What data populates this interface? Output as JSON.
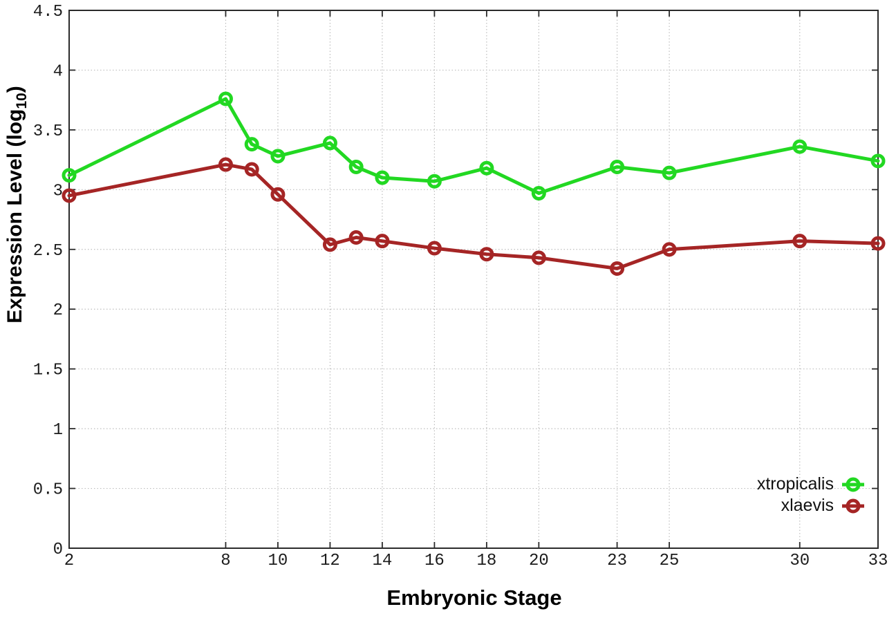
{
  "chart_data": {
    "type": "line",
    "xlabel": "Embryonic Stage",
    "ylabel_main": "Expression Level (log",
    "ylabel_sub": "10",
    "ylabel_close": ")",
    "x": [
      2,
      8,
      9,
      10,
      12,
      13,
      14,
      16,
      18,
      20,
      23,
      25,
      30,
      33
    ],
    "series": [
      {
        "name": "xtropicalis",
        "color": "#22d822",
        "values": [
          3.12,
          3.76,
          3.38,
          3.28,
          3.39,
          3.19,
          3.1,
          3.07,
          3.18,
          2.97,
          3.19,
          3.14,
          3.36,
          3.24
        ]
      },
      {
        "name": "xlaevis",
        "color": "#a52525",
        "values": [
          2.95,
          3.21,
          3.17,
          2.96,
          2.54,
          2.6,
          2.57,
          2.51,
          2.46,
          2.43,
          2.34,
          2.5,
          2.57,
          2.55
        ]
      }
    ],
    "xlim": [
      2,
      33
    ],
    "ylim": [
      0,
      4.5
    ],
    "x_ticks": [
      2,
      8,
      10,
      12,
      14,
      16,
      18,
      20,
      23,
      25,
      30,
      33
    ],
    "x_tick_labels": [
      "2",
      "8",
      "10",
      "12",
      "14",
      "16",
      "18",
      "20",
      "23",
      "25",
      "30",
      "33"
    ],
    "y_ticks": [
      0,
      0.5,
      1,
      1.5,
      2,
      2.5,
      3,
      3.5,
      4,
      4.5
    ],
    "y_tick_labels": [
      "0",
      "0.5",
      "1",
      "1.5",
      "2",
      "2.5",
      "3",
      "3.5",
      "4",
      "4.5"
    ],
    "grid": true,
    "grid_style": "dotted",
    "legend_position": "bottom-right"
  }
}
